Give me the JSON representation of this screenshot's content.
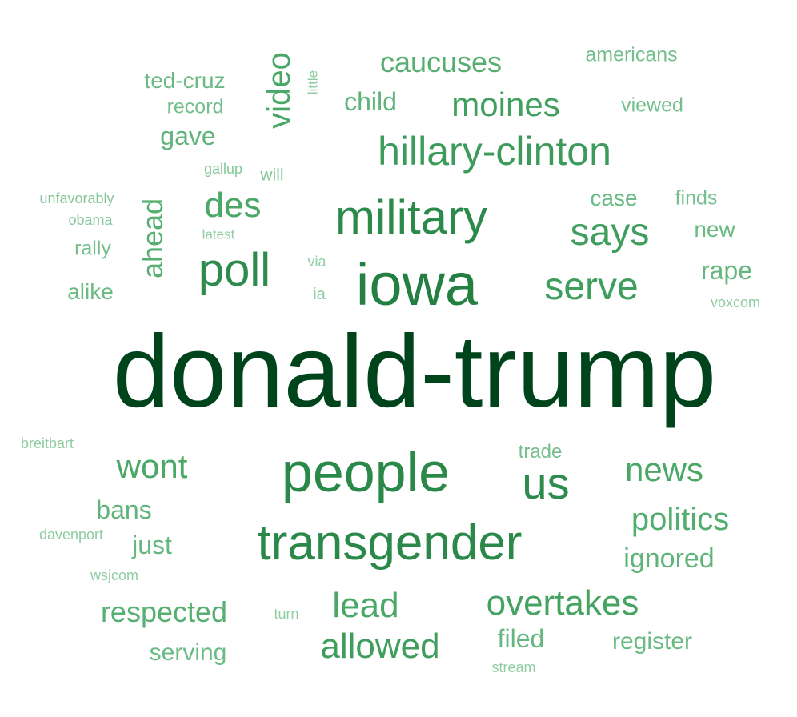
{
  "colors": {
    "background": "#ffffff",
    "darkest": "#00441b",
    "dark": "#1f7a3c",
    "mid": "#2e8b4e",
    "medium": "#3f9e5d",
    "light": "#5fb07a",
    "lighter": "#74bf8c",
    "lightest": "#8fcca2"
  },
  "words": [
    {
      "text": "donald-trump",
      "weight": 100,
      "color": "#00441b"
    },
    {
      "text": "people",
      "weight": 40,
      "color": "#2a8848"
    },
    {
      "text": "iowa",
      "weight": 40,
      "color": "#247f42"
    },
    {
      "text": "transgender",
      "weight": 36,
      "color": "#2a8848"
    },
    {
      "text": "military",
      "weight": 33,
      "color": "#2b8a4a"
    },
    {
      "text": "hillary-clinton",
      "weight": 26,
      "color": "#3c9b5a"
    },
    {
      "text": "poll",
      "weight": 26,
      "color": "#2e8b4e"
    },
    {
      "text": "us",
      "weight": 26,
      "color": "#2e8b4e"
    },
    {
      "text": "says",
      "weight": 23,
      "color": "#3f9e5d"
    },
    {
      "text": "serve",
      "weight": 23,
      "color": "#3f9e5d"
    },
    {
      "text": "overtakes",
      "weight": 21,
      "color": "#45a362"
    },
    {
      "text": "allowed",
      "weight": 21,
      "color": "#3f9e5d"
    },
    {
      "text": "moines",
      "weight": 20,
      "color": "#42a05f"
    },
    {
      "text": "wont",
      "weight": 19,
      "color": "#4aa867"
    },
    {
      "text": "news",
      "weight": 19,
      "color": "#4aa867"
    },
    {
      "text": "lead",
      "weight": 19,
      "color": "#4aa867"
    },
    {
      "text": "video",
      "weight": 18,
      "color": "#4aa867"
    },
    {
      "text": "des",
      "weight": 18,
      "color": "#4aa867"
    },
    {
      "text": "politics",
      "weight": 17,
      "color": "#52ad6e"
    },
    {
      "text": "caucuses",
      "weight": 16,
      "color": "#56af71"
    },
    {
      "text": "ahead",
      "weight": 16,
      "color": "#56af71"
    },
    {
      "text": "respected",
      "weight": 16,
      "color": "#56af71"
    },
    {
      "text": "ignored",
      "weight": 15,
      "color": "#60b47a"
    },
    {
      "text": "child",
      "weight": 14,
      "color": "#60b47a"
    },
    {
      "text": "gave",
      "weight": 14,
      "color": "#60b47a"
    },
    {
      "text": "bans",
      "weight": 14,
      "color": "#60b47a"
    },
    {
      "text": "rape",
      "weight": 14,
      "color": "#66b77f"
    },
    {
      "text": "just",
      "weight": 14,
      "color": "#66b77f"
    },
    {
      "text": "filed",
      "weight": 14,
      "color": "#66b77f"
    },
    {
      "text": "serving",
      "weight": 13,
      "color": "#6abb83"
    },
    {
      "text": "register",
      "weight": 13,
      "color": "#6abb83"
    },
    {
      "text": "ted-cruz",
      "weight": 12,
      "color": "#6abb83"
    },
    {
      "text": "case",
      "weight": 12,
      "color": "#6abb83"
    },
    {
      "text": "new",
      "weight": 12,
      "color": "#6abb83"
    },
    {
      "text": "alike",
      "weight": 12,
      "color": "#6abb83"
    },
    {
      "text": "americans",
      "weight": 11,
      "color": "#74bf8c"
    },
    {
      "text": "viewed",
      "weight": 11,
      "color": "#74bf8c"
    },
    {
      "text": "record",
      "weight": 11,
      "color": "#74bf8c"
    },
    {
      "text": "finds",
      "weight": 11,
      "color": "#74bf8c"
    },
    {
      "text": "rally",
      "weight": 11,
      "color": "#74bf8c"
    },
    {
      "text": "trade",
      "weight": 11,
      "color": "#74bf8c"
    },
    {
      "text": "will",
      "weight": 9,
      "color": "#86c79a"
    },
    {
      "text": "gallup",
      "weight": 8,
      "color": "#86c79a"
    },
    {
      "text": "unfavorably",
      "weight": 8,
      "color": "#86c79a"
    },
    {
      "text": "obama",
      "weight": 8,
      "color": "#86c79a"
    },
    {
      "text": "latest",
      "weight": 7,
      "color": "#8fcca2"
    },
    {
      "text": "via",
      "weight": 8,
      "color": "#8fcca2"
    },
    {
      "text": "ia",
      "weight": 8,
      "color": "#8fcca2"
    },
    {
      "text": "voxcom",
      "weight": 8,
      "color": "#8fcca2"
    },
    {
      "text": "breitbart",
      "weight": 8,
      "color": "#8fcca2"
    },
    {
      "text": "davenport",
      "weight": 8,
      "color": "#8fcca2"
    },
    {
      "text": "wsjcom",
      "weight": 8,
      "color": "#8fcca2"
    },
    {
      "text": "turn",
      "weight": 8,
      "color": "#8fcca2"
    },
    {
      "text": "stream",
      "weight": 8,
      "color": "#8fcca2"
    },
    {
      "text": "little",
      "weight": 7,
      "color": "#8fcca2"
    }
  ]
}
